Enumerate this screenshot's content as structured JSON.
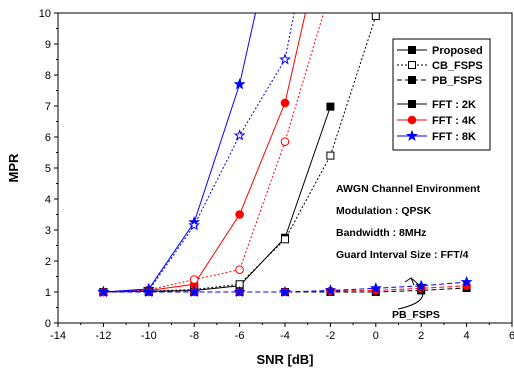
{
  "chart_data": {
    "type": "line",
    "xlabel": "SNR [dB]",
    "ylabel": "MPR",
    "xlim": [
      -14,
      6
    ],
    "ylim": [
      0,
      10
    ],
    "xticks": [
      -14,
      -12,
      -10,
      -8,
      -6,
      -4,
      -2,
      0,
      2,
      4,
      6
    ],
    "yticks": [
      0,
      1,
      2,
      3,
      4,
      5,
      6,
      7,
      8,
      9,
      10
    ],
    "grid": false,
    "legend_position": "top-right",
    "legend_methods": [
      {
        "label": "Proposed",
        "line_style": "solid",
        "marker": "square-filled"
      },
      {
        "label": "CB_FSPS",
        "line_style": "dotted",
        "marker": "square-open"
      },
      {
        "label": "PB_FSPS",
        "line_style": "dashed",
        "marker": "square-filled"
      }
    ],
    "legend_fft": [
      {
        "label": "FFT : 2K",
        "color": "#000000",
        "marker": "square"
      },
      {
        "label": "FFT : 4K",
        "color": "#ff0000",
        "marker": "circle"
      },
      {
        "label": "FFT : 8K",
        "color": "#0000ff",
        "marker": "star"
      }
    ],
    "annotation_lines": [
      "AWGN Channel Environment",
      "Modulation : QPSK",
      "Bandwidth : 8MHz",
      "Guard Interval Size : FFT/4"
    ],
    "arrow_label": "PB_FSPS",
    "series": [
      {
        "name": "Proposed FFT : 2K",
        "color": "#000000",
        "line_style": "solid",
        "marker": "square",
        "filled": true,
        "x": [
          -12,
          -10,
          -8,
          -6,
          -4,
          -2
        ],
        "y": [
          1.0,
          1.02,
          1.05,
          1.2,
          2.75,
          6.98
        ]
      },
      {
        "name": "CB_FSPS FFT : 2K",
        "color": "#000000",
        "line_style": "dotted",
        "marker": "square",
        "filled": false,
        "x": [
          -12,
          -10,
          -8,
          -6,
          -4,
          -2,
          0
        ],
        "y": [
          1.0,
          1.03,
          1.08,
          1.25,
          2.7,
          5.4,
          9.9
        ]
      },
      {
        "name": "Proposed FFT : 4K",
        "color": "#ff0000",
        "line_style": "solid",
        "marker": "circle",
        "filled": true,
        "x": [
          -12,
          -10,
          -8,
          -6,
          -4,
          -3.1
        ],
        "y": [
          1.0,
          1.05,
          1.25,
          3.5,
          7.1,
          10.0
        ]
      },
      {
        "name": "CB_FSPS FFT : 4K",
        "color": "#ff0000",
        "line_style": "dotted",
        "marker": "circle",
        "filled": false,
        "x": [
          -12,
          -10,
          -8,
          -6,
          -4,
          -2.3
        ],
        "y": [
          1.0,
          1.07,
          1.4,
          1.72,
          5.85,
          10.0
        ]
      },
      {
        "name": "Proposed FFT : 8K",
        "color": "#0000ff",
        "line_style": "solid",
        "marker": "star",
        "filled": true,
        "x": [
          -12,
          -10,
          -8,
          -6,
          -5.3
        ],
        "y": [
          1.0,
          1.1,
          3.25,
          7.7,
          10.0
        ]
      },
      {
        "name": "CB_FSPS FFT : 8K",
        "color": "#0000ff",
        "line_style": "dotted",
        "marker": "star",
        "filled": false,
        "x": [
          -12,
          -10,
          -8,
          -6,
          -4,
          -3.6
        ],
        "y": [
          1.0,
          1.05,
          3.15,
          6.05,
          8.5,
          10.0
        ]
      },
      {
        "name": "PB_FSPS FFT : 2K",
        "color": "#000000",
        "line_style": "dashed",
        "marker": "square",
        "filled": true,
        "x": [
          -12,
          -10,
          -8,
          -6,
          -4,
          -2,
          0,
          2,
          4
        ],
        "y": [
          1.0,
          1.0,
          1.0,
          1.0,
          1.0,
          1.0,
          1.0,
          1.05,
          1.13
        ]
      },
      {
        "name": "PB_FSPS FFT : 4K",
        "color": "#ff0000",
        "line_style": "dashed",
        "marker": "circle",
        "filled": true,
        "x": [
          -12,
          -10,
          -8,
          -6,
          -4,
          -2,
          0,
          2,
          4
        ],
        "y": [
          1.0,
          1.0,
          1.0,
          1.0,
          1.0,
          1.03,
          1.05,
          1.12,
          1.2
        ]
      },
      {
        "name": "PB_FSPS FFT : 8K",
        "color": "#0000ff",
        "line_style": "dashed",
        "marker": "star",
        "filled": true,
        "x": [
          -12,
          -10,
          -8,
          -6,
          -4,
          -2,
          0,
          2,
          4
        ],
        "y": [
          1.0,
          1.0,
          1.0,
          1.0,
          1.0,
          1.05,
          1.12,
          1.2,
          1.32
        ]
      }
    ]
  }
}
